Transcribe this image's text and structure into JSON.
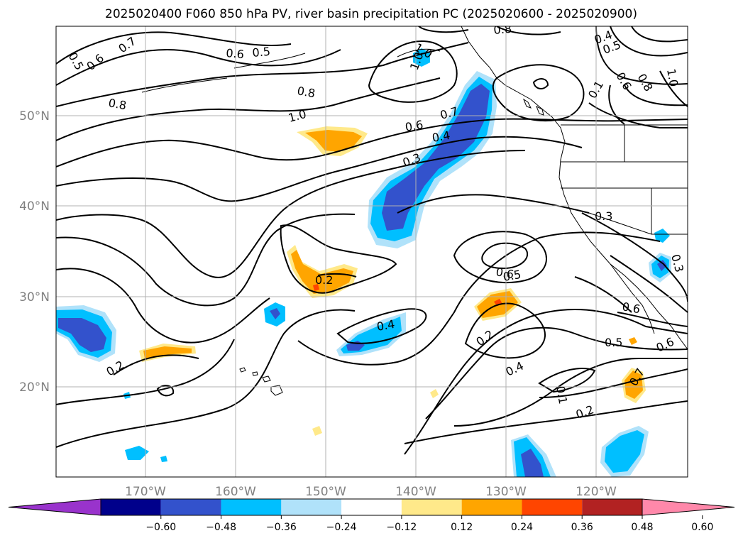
{
  "title": "2025020400 F060 850 hPa PV, river basin precipitation PC (2025020600 - 2025020900)",
  "map": {
    "lon_ticks": [
      "170°W",
      "160°W",
      "150°W",
      "140°W",
      "130°W",
      "120°W"
    ],
    "lat_ticks": [
      "50°N",
      "40°N",
      "30°N",
      "20°N"
    ]
  },
  "contour_labels": [
    "0.5",
    "0.6",
    "0.7",
    "0.6",
    "0.5",
    "0.8",
    "0.8",
    "1.0",
    "1.0",
    "1.0",
    "0.7",
    "0.6",
    "0.4",
    "0.3",
    "0.8",
    "0.4",
    "0.5",
    "0.6",
    "0.8",
    "1.0",
    "0.1",
    "0.3",
    "0.2",
    "0.6",
    "0.5",
    "0.4",
    "0.2",
    "0.4",
    "0.1",
    "0.2",
    "0.6",
    "0.5",
    "0.6",
    "0.3",
    "0.2",
    "0.7"
  ],
  "colorbar": {
    "colors": [
      "#9933cc",
      "#00008b",
      "#3352cc",
      "#00bfff",
      "#b0e2fa",
      "#ffffff",
      "#ffe98a",
      "#ffa500",
      "#ff4500",
      "#b22222",
      "#ff88aa"
    ],
    "tick_labels": [
      "−0.60",
      "−0.48",
      "−0.36",
      "−0.24",
      "−0.12",
      "0.12",
      "0.24",
      "0.36",
      "0.48",
      "0.60"
    ]
  },
  "shading_colors": {
    "light_blue": "#b0e2fa",
    "blue": "#00bfff",
    "royal_blue": "#3352cc",
    "navy": "#00008b",
    "light_yellow": "#ffe98a",
    "orange": "#ffa500",
    "red_orange": "#ff4500"
  }
}
